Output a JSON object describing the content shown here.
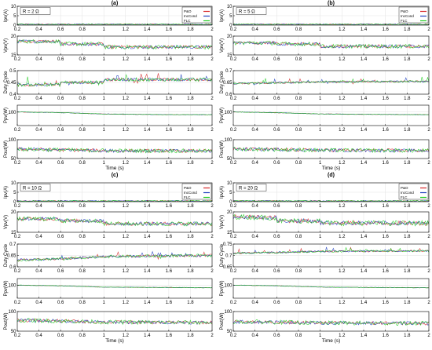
{
  "chart_data": [
    {
      "type": "line",
      "panel_label": "(a)",
      "annotation": "R = 2 Ω",
      "legend": [
        "P&O",
        "IncCond",
        "FLC"
      ],
      "xlabel": "Time (s)",
      "xticks": [
        "0.2",
        "0.4",
        "0.6",
        "0.8",
        "1",
        "1.2",
        "1.4",
        "1.6",
        "1.8",
        "2"
      ],
      "xlim": [
        0.2,
        2
      ],
      "subplots": [
        {
          "ylabel": "Ipv(A)",
          "ylim": [
            0,
            10
          ],
          "yticks": [
            "0",
            "5",
            "10"
          ],
          "levels": [
            [
              0.2,
              0.4
            ],
            [
              2,
              0.4
            ]
          ],
          "noise": 0.3
        },
        {
          "ylabel": "Vpv(V)",
          "ylim": [
            15,
            20
          ],
          "yticks": [
            "15",
            "20"
          ],
          "levels": [
            [
              0.2,
              18.6
            ],
            [
              0.6,
              18.6
            ],
            [
              0.6,
              17.9
            ],
            [
              1,
              17.9
            ],
            [
              1,
              17.1
            ],
            [
              2,
              17.1
            ]
          ],
          "noise": 0.5
        },
        {
          "ylabel": "Duty Cycle",
          "ylim": [
            0.4,
            0.5
          ],
          "yticks": [
            "0.4",
            "0.45",
            "0.5"
          ],
          "levels": [
            [
              0.2,
              0.44
            ],
            [
              0.6,
              0.44
            ],
            [
              0.6,
              0.45
            ],
            [
              1,
              0.45
            ],
            [
              1,
              0.462
            ],
            [
              2,
              0.462
            ]
          ],
          "noise": 0.007
        },
        {
          "ylabel": "Ppv(W)",
          "ylim": [
            80,
            110
          ],
          "yticks": [
            "100"
          ],
          "levels": [
            [
              0.2,
              100
            ],
            [
              0.6,
              99
            ],
            [
              1,
              97
            ],
            [
              1.6,
              96
            ],
            [
              2,
              96
            ]
          ],
          "noise": 0.4
        },
        {
          "ylabel": "Pout(W)",
          "ylim": [
            50,
            100
          ],
          "yticks": [
            "50",
            "100"
          ],
          "levels": [
            [
              0.2,
              75
            ],
            [
              0.6,
              73
            ],
            [
              1,
              71
            ],
            [
              2,
              70
            ]
          ],
          "noise": 5
        }
      ]
    },
    {
      "type": "line",
      "panel_label": "(b)",
      "annotation": "R = 5 Ω",
      "legend": [
        "P&O",
        "IncCond",
        "FLC"
      ],
      "xlabel": "Time (s)",
      "xticks": [
        "0.2",
        "0.4",
        "0.6",
        "0.8",
        "1",
        "1.2",
        "1.4",
        "1.6",
        "1.8",
        "2"
      ],
      "xlim": [
        0.2,
        2
      ],
      "subplots": [
        {
          "ylabel": "Ipv(A)",
          "ylim": [
            0,
            10
          ],
          "yticks": [
            "0",
            "5",
            "10"
          ],
          "levels": [
            [
              0.2,
              0.4
            ],
            [
              2,
              0.4
            ]
          ],
          "noise": 0.3
        },
        {
          "ylabel": "Vpv(V)",
          "ylim": [
            15,
            20
          ],
          "yticks": [
            "15",
            "20"
          ],
          "levels": [
            [
              0.2,
              18.2
            ],
            [
              0.6,
              18.2
            ],
            [
              0.6,
              17.9
            ],
            [
              1,
              17.9
            ],
            [
              1,
              17.3
            ],
            [
              2,
              17.3
            ]
          ],
          "noise": 0.5
        },
        {
          "ylabel": "Duty Cycle",
          "ylim": [
            0.6,
            0.7
          ],
          "yticks": [
            "0.6",
            "0.65",
            "0.7"
          ],
          "levels": [
            [
              0.2,
              0.645
            ],
            [
              0.6,
              0.648
            ],
            [
              1,
              0.652
            ],
            [
              2,
              0.655
            ]
          ],
          "noise": 0.004
        },
        {
          "ylabel": "Ppv(W)",
          "ylim": [
            80,
            110
          ],
          "yticks": [
            "100"
          ],
          "levels": [
            [
              0.2,
              100
            ],
            [
              0.6,
              99
            ],
            [
              1,
              97
            ],
            [
              2,
              96
            ]
          ],
          "noise": 0.4
        },
        {
          "ylabel": "Pout(W)",
          "ylim": [
            50,
            100
          ],
          "yticks": [
            "50",
            "100"
          ],
          "levels": [
            [
              0.2,
              75
            ],
            [
              0.6,
              74
            ],
            [
              1,
              72
            ],
            [
              2,
              71
            ]
          ],
          "noise": 5
        }
      ]
    },
    {
      "type": "line",
      "panel_label": "(c)",
      "annotation": "R = 10 Ω",
      "legend": [
        "P&O",
        "IncCond",
        "FLC"
      ],
      "xlabel": "Time (s)",
      "xticks": [
        "0.2",
        "0.4",
        "0.6",
        "0.8",
        "1",
        "1.2",
        "1.4",
        "1.6",
        "1.8",
        "2"
      ],
      "xlim": [
        0.2,
        2
      ],
      "subplots": [
        {
          "ylabel": "Ipv(A)",
          "ylim": [
            0,
            10
          ],
          "yticks": [
            "0",
            "5",
            "10"
          ],
          "levels": [
            [
              0.2,
              0.4
            ],
            [
              2,
              0.4
            ]
          ],
          "noise": 0.3
        },
        {
          "ylabel": "Vpv(V)",
          "ylim": [
            15,
            20
          ],
          "yticks": [
            "15",
            "20"
          ],
          "levels": [
            [
              0.2,
              18.3
            ],
            [
              0.6,
              18.3
            ],
            [
              0.6,
              17.8
            ],
            [
              1,
              17.8
            ],
            [
              1,
              17.1
            ],
            [
              2,
              17.1
            ]
          ],
          "noise": 0.5
        },
        {
          "ylabel": "Duty Cycle",
          "ylim": [
            0.6,
            0.7
          ],
          "yticks": [
            "0.6",
            "0.65",
            "0.7"
          ],
          "levels": [
            [
              0.2,
              0.63
            ],
            [
              0.6,
              0.635
            ],
            [
              1,
              0.645
            ],
            [
              2,
              0.65
            ]
          ],
          "noise": 0.006
        },
        {
          "ylabel": "Ppv(W)",
          "ylim": [
            80,
            110
          ],
          "yticks": [
            "100"
          ],
          "levels": [
            [
              0.2,
              100
            ],
            [
              0.6,
              99
            ],
            [
              1,
              97
            ],
            [
              2,
              96
            ]
          ],
          "noise": 0.4
        },
        {
          "ylabel": "Pout(W)",
          "ylim": [
            50,
            100
          ],
          "yticks": [
            "50",
            "100"
          ],
          "levels": [
            [
              0.2,
              78
            ],
            [
              0.6,
              76
            ],
            [
              1,
              73
            ],
            [
              2,
              72
            ]
          ],
          "noise": 5
        }
      ]
    },
    {
      "type": "line",
      "panel_label": "(d)",
      "annotation": "R = 20 Ω",
      "legend": [
        "P&O",
        "IncCond",
        "FLC"
      ],
      "xlabel": "Time (s)",
      "xticks": [
        "0.2",
        "0.4",
        "0.6",
        "0.8",
        "1",
        "1.2",
        "1.4",
        "1.6",
        "1.8",
        "2"
      ],
      "xlim": [
        0.2,
        2
      ],
      "subplots": [
        {
          "ylabel": "Ipv(A)",
          "ylim": [
            0,
            10
          ],
          "yticks": [
            "0",
            "5",
            "10"
          ],
          "levels": [
            [
              0.2,
              0.4
            ],
            [
              2,
              0.4
            ]
          ],
          "noise": 0.3
        },
        {
          "ylabel": "Vpv(V)",
          "ylim": [
            15,
            20
          ],
          "yticks": [
            "15",
            "20"
          ],
          "levels": [
            [
              0.2,
              18.8
            ],
            [
              0.6,
              18.6
            ],
            [
              0.6,
              17.8
            ],
            [
              1,
              17.8
            ],
            [
              1,
              17.3
            ],
            [
              2,
              17.2
            ]
          ],
          "noise": 0.6
        },
        {
          "ylabel": "Duty Cycle",
          "ylim": [
            0.65,
            0.75
          ],
          "yticks": [
            "0.65",
            "0.7",
            "0.75"
          ],
          "levels": [
            [
              0.2,
              0.71
            ],
            [
              0.6,
              0.713
            ],
            [
              1,
              0.718
            ],
            [
              2,
              0.72
            ]
          ],
          "noise": 0.004
        },
        {
          "ylabel": "Ppv(W)",
          "ylim": [
            80,
            110
          ],
          "yticks": [
            "100"
          ],
          "levels": [
            [
              0.2,
              100
            ],
            [
              0.6,
              99
            ],
            [
              1,
              97
            ],
            [
              2,
              96
            ]
          ],
          "noise": 0.4
        },
        {
          "ylabel": "Pout(W)",
          "ylim": [
            50,
            100
          ],
          "yticks": [
            "50",
            "100"
          ],
          "levels": [
            [
              0.2,
              74
            ],
            [
              0.6,
              73
            ],
            [
              1,
              71
            ],
            [
              2,
              70
            ]
          ],
          "noise": 5
        }
      ]
    }
  ],
  "series_colors": {
    "P&O": "#d62728",
    "IncCond": "#1f3fbf",
    "FLC": "#22cc22"
  }
}
